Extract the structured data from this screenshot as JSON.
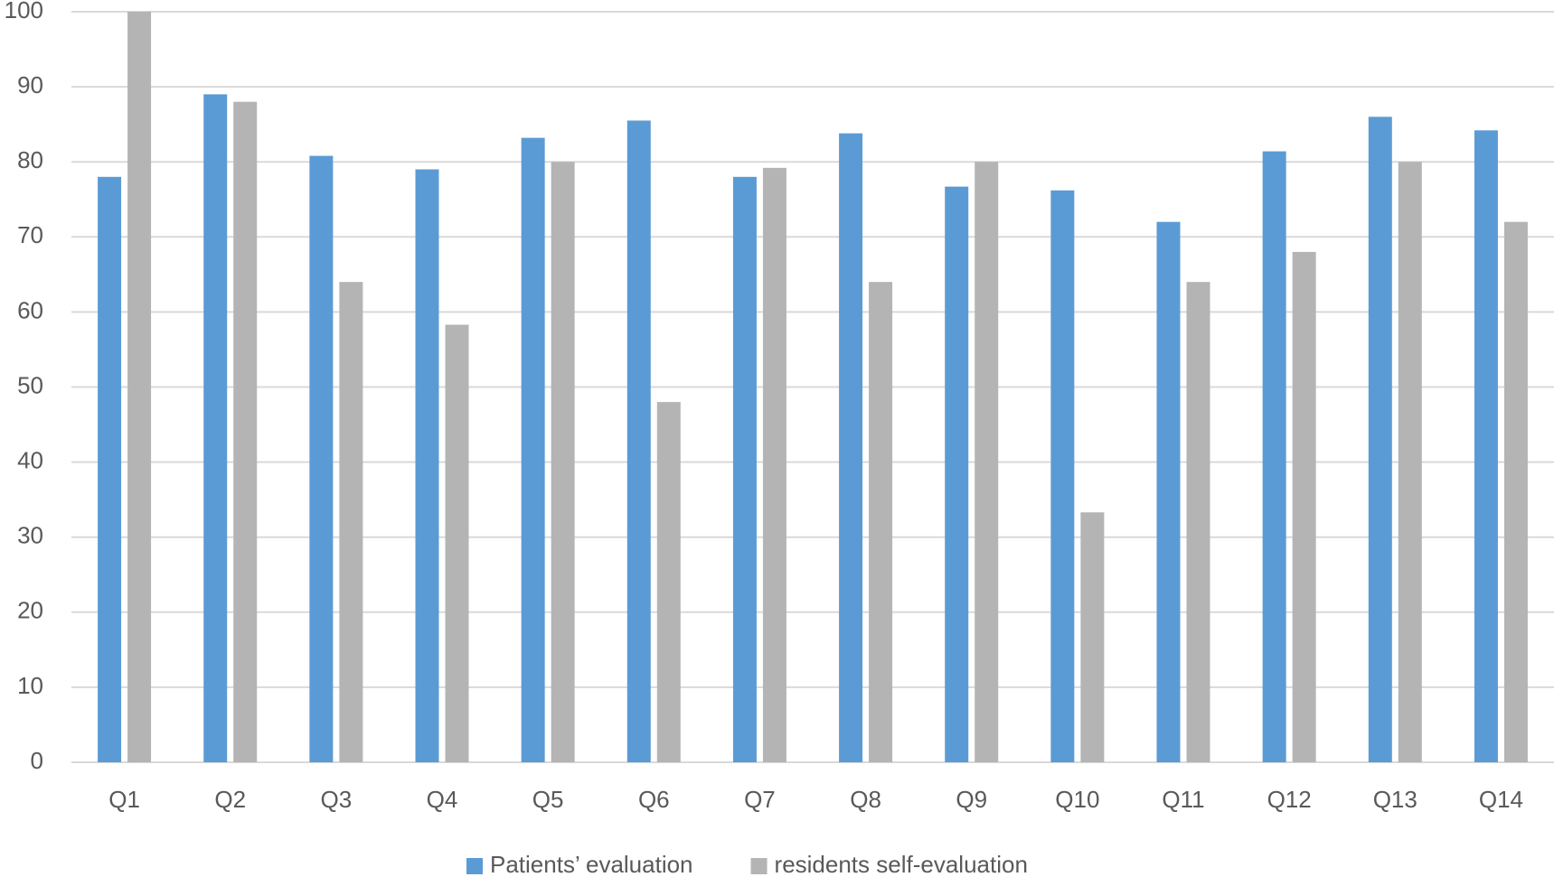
{
  "chart_data": {
    "type": "bar",
    "categories": [
      "Q1",
      "Q2",
      "Q3",
      "Q4",
      "Q5",
      "Q6",
      "Q7",
      "Q8",
      "Q9",
      "Q10",
      "Q11",
      "Q12",
      "Q13",
      "Q14"
    ],
    "series": [
      {
        "name": "Patients’ evaluation",
        "color": "#5b9bd5",
        "values": [
          78,
          89,
          80.8,
          79,
          83.2,
          85.5,
          78,
          83.8,
          76.7,
          76.2,
          72,
          81.4,
          86,
          84.2
        ]
      },
      {
        "name": "residents self-evaluation",
        "color": "#b4b4b4",
        "values": [
          100,
          88,
          64,
          58.3,
          80,
          48,
          79.2,
          64,
          80,
          33.3,
          64,
          68,
          80,
          72
        ]
      }
    ],
    "ylim": [
      0,
      100
    ],
    "yticks": [
      0,
      10,
      20,
      30,
      40,
      50,
      60,
      70,
      80,
      90,
      100
    ],
    "grid": true,
    "legend": "bottom"
  }
}
